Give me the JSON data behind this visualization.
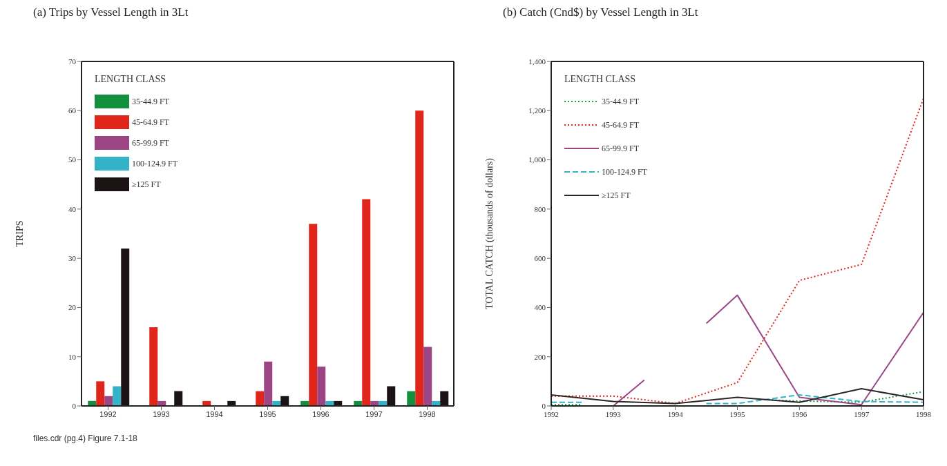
{
  "chart_data": [
    {
      "type": "bar",
      "title": "(a)  Trips by Vessel Length in 3Lt",
      "ylabel": "TRIPS",
      "legend_title": "LENGTH CLASS",
      "legend": "top left",
      "categories": [
        "1992",
        "1993",
        "1994",
        "1995",
        "1996",
        "1997",
        "1998"
      ],
      "series": [
        {
          "name": "35-44.9 FT",
          "color": "#12903f",
          "values": [
            1,
            null,
            null,
            null,
            1,
            1,
            3
          ]
        },
        {
          "name": "45-64.9 FT",
          "color": "#e0261a",
          "values": [
            5,
            16,
            1,
            3,
            37,
            42,
            60
          ]
        },
        {
          "name": "65-99.9 FT",
          "color": "#9b4584",
          "values": [
            2,
            1,
            null,
            9,
            8,
            1,
            12
          ]
        },
        {
          "name": "100-124.9 FT",
          "color": "#33b3c8",
          "values": [
            4,
            null,
            null,
            1,
            1,
            1,
            1
          ]
        },
        {
          "name": "≥125 FT",
          "color": "#1c1414",
          "values": [
            32,
            3,
            1,
            2,
            1,
            4,
            3
          ]
        }
      ],
      "ylim": [
        0,
        70
      ],
      "yticks": [
        0,
        10,
        20,
        30,
        40,
        50,
        60,
        70
      ],
      "grid": false,
      "annotations": [
        "files.cdr (pg.4) Figure 7.1-18"
      ]
    },
    {
      "type": "line",
      "title": "(b)  Catch (Cnd$) by Vessel Length in 3Lt",
      "ylabel": "TOTAL CATCH (thousands of dollars)",
      "legend_title": "LENGTH CLASS",
      "legend": "top left",
      "marker": "none",
      "series": [
        {
          "name": "35-44.9 FT",
          "color": "#1f9a4a",
          "line_style": "dotted",
          "x": [
            1992,
            1992.5,
            1994,
            1995.5,
            1996,
            1997,
            1998
          ],
          "values": [
            5,
            5,
            null,
            25,
            20,
            15,
            58
          ]
        },
        {
          "name": "45-64.9 FT",
          "color": "#e0261a",
          "line_style": "dotted",
          "x": [
            1992,
            1993,
            1994,
            1995,
            1996,
            1997,
            1998
          ],
          "values": [
            40,
            40,
            10,
            95,
            510,
            575,
            1250
          ]
        },
        {
          "name": "65-99.9 FT",
          "color": "#9b4584",
          "line_style": "solid",
          "x": [
            1993,
            1993.5,
            1994,
            1994.5,
            1995,
            1996,
            1997,
            1998
          ],
          "values": [
            0,
            105,
            null,
            335,
            450,
            35,
            5,
            380
          ]
        },
        {
          "name": "100-124.9 FT",
          "color": "#33b3c8",
          "line_style": "dashed",
          "x": [
            1992,
            1992.5,
            1993.5,
            1994.5,
            1995,
            1996,
            1997,
            1998
          ],
          "values": [
            15,
            15,
            null,
            10,
            10,
            45,
            18,
            15
          ]
        },
        {
          "name": "≥125 FT",
          "color": "#2a2626",
          "line_style": "solid",
          "x": [
            1992,
            1993,
            1994,
            1995,
            1996,
            1997,
            1998
          ],
          "values": [
            45,
            18,
            10,
            35,
            15,
            70,
            25
          ]
        }
      ],
      "xlim": [
        1992,
        1998
      ],
      "xticks": [
        1992,
        1993,
        1994,
        1995,
        1996,
        1997,
        1998
      ],
      "ylim": [
        0,
        1400
      ],
      "yticks": [
        0,
        200,
        400,
        600,
        800,
        {
          "value": 1000,
          "label": "1,000"
        },
        {
          "value": 1200,
          "label": "1,200"
        },
        {
          "value": 1400,
          "label": "1,400"
        }
      ],
      "grid": false
    }
  ]
}
